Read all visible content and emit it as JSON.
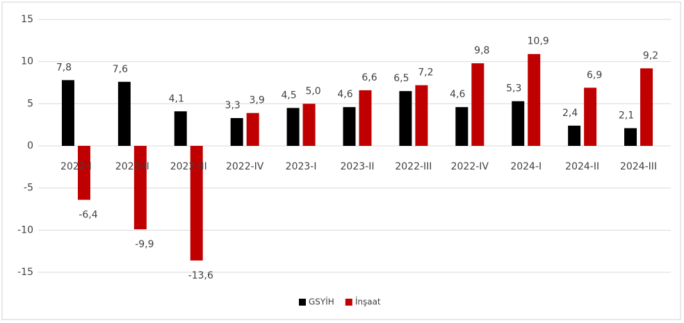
{
  "chart_data": {
    "type": "bar",
    "categories": [
      "2022-I",
      "2022-II",
      "2022-III",
      "2022-IV",
      "2023-I",
      "2023-II",
      "2022-III",
      "2022-IV",
      "2024-I",
      "2024-II",
      "2024-III"
    ],
    "series": [
      {
        "name": "GSYİH",
        "color": "#000000",
        "values": [
          7.8,
          7.6,
          4.1,
          3.3,
          4.5,
          4.6,
          6.5,
          4.6,
          5.3,
          2.4,
          2.1
        ],
        "value_labels": [
          "7,8",
          "7,6",
          "4,1",
          "3,3",
          "4,5",
          "4,6",
          "6,5",
          "4,6",
          "5,3",
          "2,4",
          "2,1"
        ]
      },
      {
        "name": "İnşaat",
        "color": "#c00000",
        "values": [
          -6.4,
          -9.9,
          -13.6,
          3.9,
          5.0,
          6.6,
          7.2,
          9.8,
          10.9,
          6.9,
          9.2
        ],
        "value_labels": [
          "-6,4",
          "-9,9",
          "-13,6",
          "3,9",
          "5,0",
          "6,6",
          "7,2",
          "9,8",
          "10,9",
          "6,9",
          "9,2"
        ]
      }
    ],
    "ylim": [
      -15,
      15
    ],
    "yticks": [
      -15,
      -10,
      -5,
      0,
      5,
      10,
      15
    ],
    "grid": true,
    "legend": "bottom"
  }
}
